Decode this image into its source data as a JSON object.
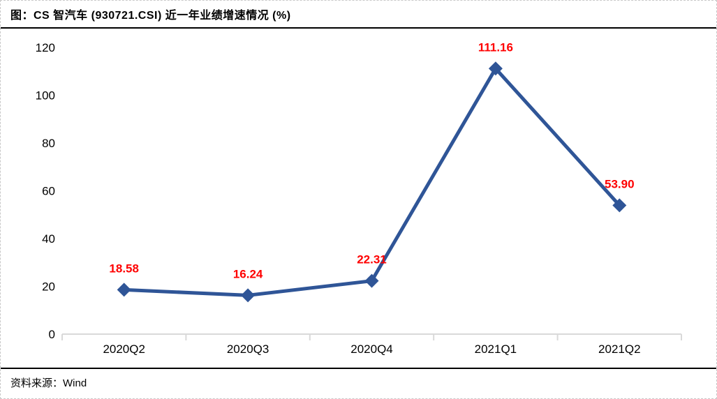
{
  "chart_data": {
    "type": "line",
    "title": "图：CS 智汽车 (930721.CSI) 近一年业绩增速情况 (%)",
    "source": "资料来源：Wind",
    "categories": [
      "2020Q2",
      "2020Q3",
      "2020Q4",
      "2021Q1",
      "2021Q2"
    ],
    "values": [
      18.58,
      16.24,
      22.31,
      111.16,
      53.9
    ],
    "data_labels": [
      "18.58",
      "16.24",
      "22.31",
      "111.16",
      "53.90"
    ],
    "y_ticks": [
      0,
      20,
      40,
      60,
      80,
      100,
      120
    ],
    "ylim": [
      0,
      120
    ],
    "grid": false,
    "legend": "none",
    "marker_shape": "diamond",
    "colors": {
      "line": "#2F5597",
      "marker": "#2F5597",
      "data_label": "#FF0000",
      "axis": "#D9D9D9",
      "tick_text": "#000000"
    }
  }
}
